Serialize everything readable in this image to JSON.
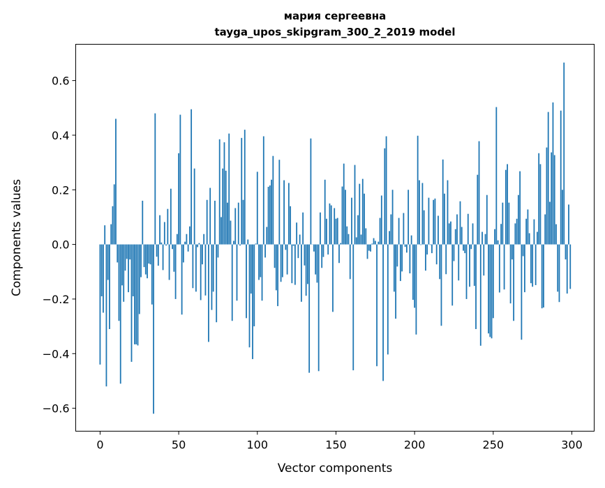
{
  "chart_data": {
    "type": "bar",
    "title": [
      "мария сергеевна",
      "tayga_upos_skipgram_300_2_2019 model"
    ],
    "xlabel": "Vector components",
    "ylabel": "Components values",
    "xlim": [
      -15.5,
      314.2
    ],
    "ylim": [
      -0.684,
      0.733
    ],
    "xticks": [
      0,
      50,
      100,
      150,
      200,
      250,
      300
    ],
    "xtick_labels": [
      "0",
      "50",
      "100",
      "150",
      "200",
      "250",
      "300"
    ],
    "yticks": [
      -0.6,
      -0.4,
      -0.2,
      0.0,
      0.2,
      0.4,
      0.6
    ],
    "ytick_labels": [
      "−0.6",
      "−0.4",
      "−0.2",
      "0.0",
      "0.2",
      "0.4",
      "0.6"
    ],
    "grid": false,
    "bar_color": "#1f77b4",
    "values": [
      -0.44,
      -0.19,
      -0.25,
      0.07,
      -0.52,
      -0.13,
      -0.31,
      0.074,
      0.14,
      0.22,
      0.46,
      -0.066,
      -0.28,
      -0.51,
      -0.15,
      -0.21,
      -0.096,
      -0.053,
      -0.175,
      -0.055,
      -0.43,
      -0.19,
      -0.366,
      -0.366,
      -0.37,
      -0.255,
      -0.12,
      0.16,
      -0.083,
      -0.11,
      -0.124,
      -0.07,
      -0.073,
      -0.22,
      -0.62,
      0.48,
      -0.045,
      -0.078,
      0.107,
      0.007,
      -0.094,
      0.082,
      -0.004,
      0.13,
      -0.13,
      0.204,
      -0.017,
      -0.1,
      -0.2,
      0.038,
      0.334,
      0.475,
      -0.257,
      -0.066,
      0.01,
      0.038,
      -0.026,
      0.066,
      0.495,
      -0.16,
      0.278,
      -0.173,
      -0.01,
      0.005,
      -0.204,
      -0.073,
      0.038,
      -0.187,
      0.163,
      -0.357,
      0.207,
      -0.24,
      -0.173,
      0.16,
      -0.285,
      -0.048,
      0.385,
      0.1,
      0.278,
      0.374,
      0.27,
      0.153,
      0.406,
      0.087,
      -0.28,
      0.013,
      0.133,
      -0.206,
      0.153,
      -0.004,
      0.39,
      0.163,
      0.42,
      -0.27,
      0.018,
      -0.377,
      -0.18,
      -0.42,
      -0.3,
      0.003,
      0.266,
      -0.13,
      -0.12,
      -0.206,
      0.396,
      -0.048,
      0.064,
      0.211,
      0.216,
      0.237,
      0.324,
      -0.086,
      -0.168,
      -0.226,
      0.31,
      -0.137,
      -0.12,
      0.235,
      -0.02,
      -0.11,
      0.225,
      0.14,
      -0.142,
      -0.005,
      -0.148,
      0.08,
      -0.05,
      0.036,
      -0.21,
      0.117,
      -0.077,
      -0.188,
      -0.145,
      -0.47,
      0.388,
      0.0,
      -0.026,
      -0.11,
      -0.14,
      -0.464,
      0.117,
      -0.086,
      -0.046,
      0.237,
      0.094,
      -0.037,
      0.15,
      0.143,
      -0.247,
      0.133,
      0.094,
      0.097,
      -0.068,
      0.005,
      0.212,
      0.296,
      0.2,
      0.066,
      0.038,
      -0.127,
      0.171,
      -0.461,
      0.291,
      0.026,
      0.107,
      0.222,
      0.036,
      0.24,
      0.186,
      0.059,
      -0.053,
      -0.023,
      -0.026,
      0.003,
      0.023,
      0.013,
      -0.446,
      0.01,
      0.097,
      0.179,
      -0.5,
      0.352,
      0.396,
      -0.403,
      0.049,
      0.11,
      0.2,
      -0.173,
      -0.272,
      -0.081,
      0.097,
      -0.134,
      -0.099,
      0.115,
      -0.009,
      -0.03,
      0.2,
      -0.106,
      0.033,
      -0.203,
      -0.232,
      -0.33,
      0.398,
      0.235,
      -0.002,
      0.225,
      0.125,
      -0.096,
      -0.037,
      0.171,
      -0.002,
      -0.032,
      0.163,
      0.168,
      -0.073,
      0.105,
      -0.127,
      -0.298,
      0.311,
      0.186,
      -0.109,
      0.235,
      0.077,
      0.084,
      -0.224,
      -0.061,
      0.056,
      0.11,
      -0.132,
      0.158,
      0.064,
      -0.023,
      -0.032,
      -0.2,
      0.112,
      -0.155,
      -0.017,
      0.077,
      -0.152,
      -0.31,
      0.255,
      0.378,
      -0.371,
      0.046,
      -0.114,
      0.038,
      0.181,
      -0.326,
      -0.339,
      -0.344,
      -0.27,
      0.056,
      0.503,
      0.015,
      -0.176,
      0.075,
      0.153,
      -0.165,
      0.273,
      0.294,
      0.153,
      -0.216,
      -0.055,
      -0.28,
      0.077,
      0.094,
      0.181,
      0.268,
      -0.349,
      -0.043,
      -0.175,
      0.094,
      0.128,
      0.041,
      -0.142,
      -0.155,
      0.092,
      -0.149,
      0.046,
      0.334,
      0.294,
      -0.234,
      -0.231,
      0.11,
      0.355,
      0.485,
      0.156,
      0.337,
      0.52,
      0.327,
      0.074,
      -0.173,
      -0.211,
      0.49,
      0.2,
      0.666,
      -0.055,
      -0.18,
      0.146,
      -0.163
    ]
  }
}
